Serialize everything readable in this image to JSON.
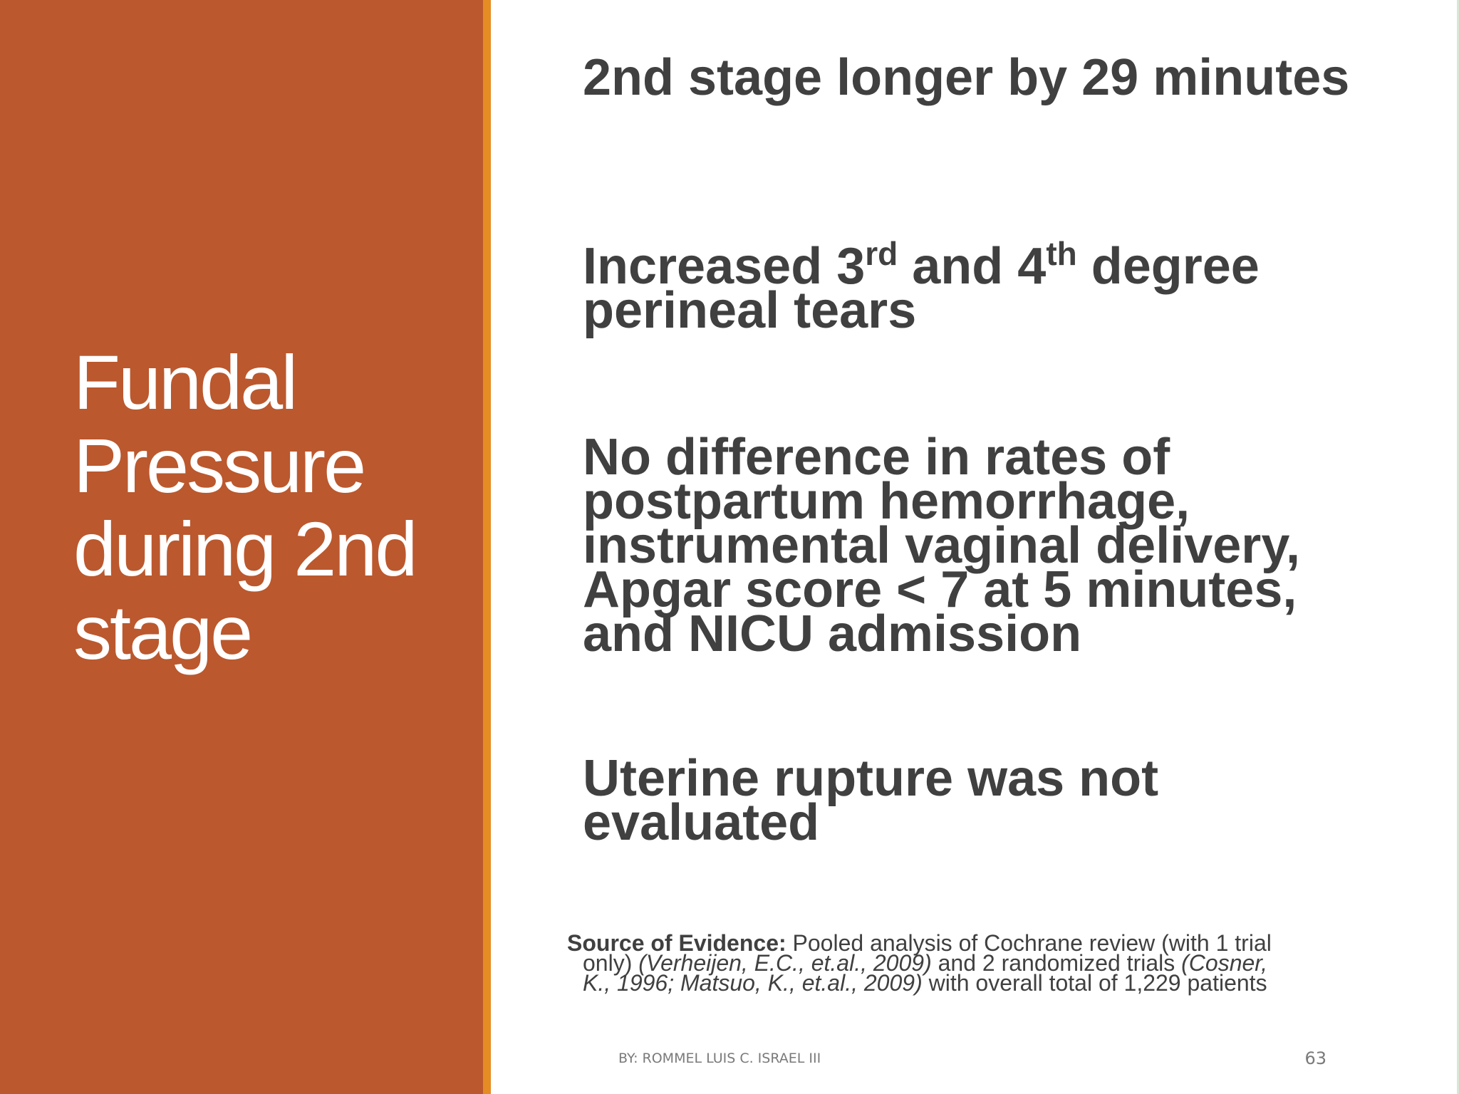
{
  "slide": {
    "title": "Fundal Pressure during 2nd stage",
    "bullets": [
      {
        "text": "2nd stage longer by 29 minutes"
      },
      {
        "p1": "Increased 3",
        "sup1": "rd",
        "p2": " and 4",
        "sup2": "th",
        "p3": " degree perineal tears"
      },
      {
        "text": "No difference in rates of postpartum hemorrhage, instrumental vaginal delivery, Apgar score < 7 at 5 minutes, and NICU admission"
      },
      {
        "text": "Uterine rupture was not evaluated"
      }
    ],
    "source": {
      "label": "Source of Evidence:",
      "line1_text": " Pooled analysis of Cochrane review (with 1 trial",
      "line2_text_a": "only) ",
      "citation1": "(Verheijen, E.C., et.al., 2009)",
      "line2_text_b": " and 2 randomized trials ",
      "citation2": "(Cosner,",
      "citation3": "K., 1996; Matsuo, K., et.al., 2009)",
      "line3_text": " with overall total of 1,229 patients"
    },
    "footer": {
      "author": "BY: ROMMEL LUIS C. ISRAEL III",
      "page_number": "63"
    }
  },
  "colors": {
    "left_panel": "#BB582E",
    "accent_stripe": "#E58C24",
    "title_text": "#FFFFFF",
    "body_text": "#404040",
    "footer_text": "#7A7A7A"
  }
}
